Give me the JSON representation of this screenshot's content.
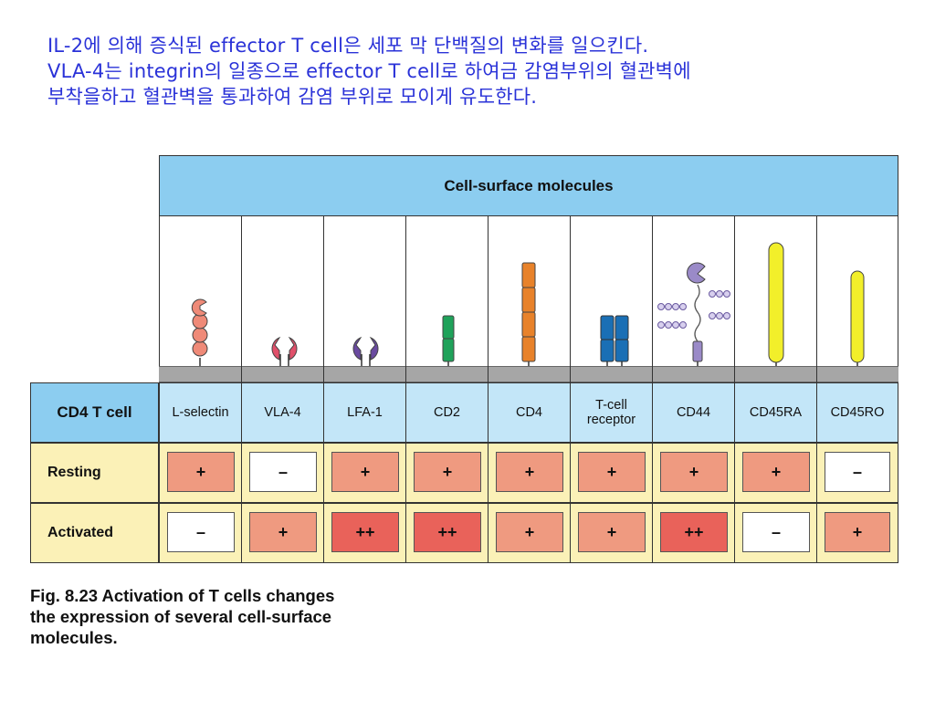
{
  "intro_lines": [
    "IL-2에 의해 증식된 effector T cell은 세포 막 단백질의 변화를 일으킨다.",
    "VLA-4는 integrin의 일종으로 effector T cell로 하여금 감염부위의 혈관벽에",
    "부착을하고 혈관벽을 통과하여 감염 부위로 모이게 유도한다."
  ],
  "table": {
    "header": "Cell-surface molecules",
    "row_header": "CD4  T  cell",
    "row_labels": [
      "Resting",
      "Activated"
    ],
    "columns": [
      {
        "name": "L-selectin",
        "icon": "l-selectin-icon",
        "resting": "+",
        "activated": "–",
        "resting_level": 1,
        "activated_level": 0
      },
      {
        "name": "VLA-4",
        "icon": "vla4-icon",
        "resting": "–",
        "activated": "+",
        "resting_level": 0,
        "activated_level": 1
      },
      {
        "name": "LFA-1",
        "icon": "lfa1-icon",
        "resting": "+",
        "activated": "++",
        "resting_level": 1,
        "activated_level": 2
      },
      {
        "name": "CD2",
        "icon": "cd2-icon",
        "resting": "+",
        "activated": "++",
        "resting_level": 1,
        "activated_level": 2
      },
      {
        "name": "CD4",
        "icon": "cd4-icon",
        "resting": "+",
        "activated": "+",
        "resting_level": 1,
        "activated_level": 1
      },
      {
        "name_line1": "T-cell",
        "name_line2": "receptor",
        "icon": "tcr-icon",
        "resting": "+",
        "activated": "+",
        "resting_level": 1,
        "activated_level": 1
      },
      {
        "name": "CD44",
        "icon": "cd44-icon",
        "resting": "+",
        "activated": "++",
        "resting_level": 1,
        "activated_level": 2
      },
      {
        "name": "CD45RA",
        "icon": "cd45ra-icon",
        "resting": "+",
        "activated": "–",
        "resting_level": 1,
        "activated_level": 0
      },
      {
        "name": "CD45RO",
        "icon": "cd45ro-icon",
        "resting": "–",
        "activated": "+",
        "resting_level": 0,
        "activated_level": 1
      }
    ]
  },
  "caption_lines": [
    "Fig. 8.23 Activation of T cells changes",
    "the expression of several cell-surface",
    "molecules."
  ],
  "colors": {
    "intro_text": "#2a32d8",
    "header_blue": "#8ccdf0",
    "name_row_blue": "#c3e6f8",
    "row_cream": "#fbf1b7",
    "membrane": "#a6a6a6",
    "level_0": "#ffffff",
    "level_1": "#ef9a80",
    "level_2": "#e9625a"
  }
}
